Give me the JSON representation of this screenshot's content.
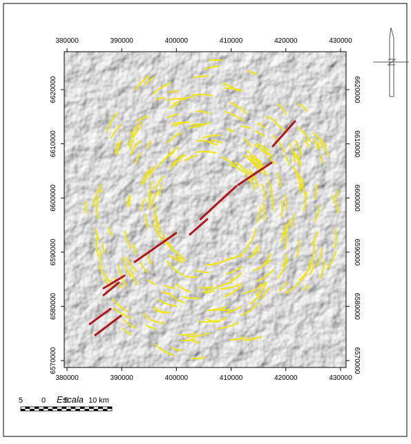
{
  "map": {
    "x_ticks": [
      380000,
      390000,
      400000,
      410000,
      420000,
      430000
    ],
    "y_ticks": [
      6570000,
      6580000,
      6590000,
      6600000,
      6610000,
      6620000
    ],
    "scale": {
      "title": "Escala",
      "labels": [
        "5",
        "0",
        "5",
        "10 km"
      ]
    }
  }
}
